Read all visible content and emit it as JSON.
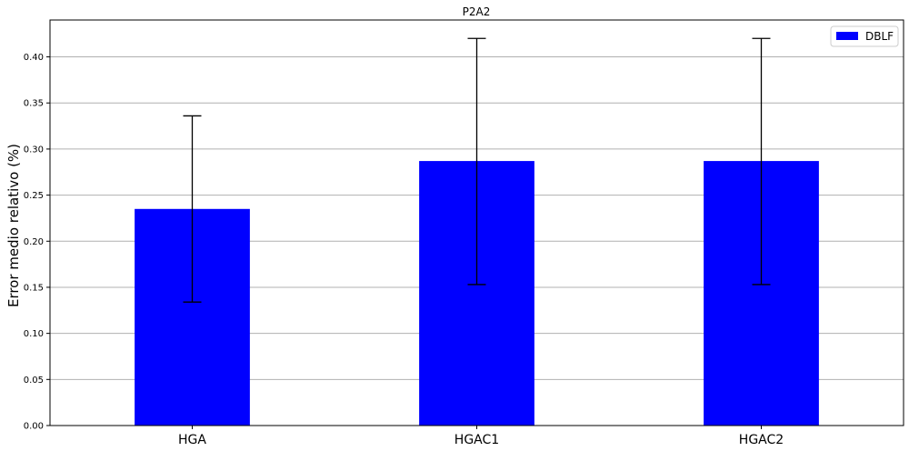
{
  "chart_data": {
    "type": "bar",
    "title": "P2A2",
    "xlabel": "",
    "ylabel": "Error medio relativo (%)",
    "categories": [
      "HGA",
      "HGAC1",
      "HGAC2"
    ],
    "series": [
      {
        "name": "DBLF",
        "values": [
          0.235,
          0.287,
          0.287
        ],
        "error_low": [
          0.134,
          0.153,
          0.153
        ],
        "error_high": [
          0.336,
          0.42,
          0.42
        ],
        "color": "#0000ff"
      }
    ],
    "ylim": [
      0,
      0.44
    ],
    "yticks": [
      "0.00",
      "0.05",
      "0.10",
      "0.15",
      "0.20",
      "0.25",
      "0.30",
      "0.35",
      "0.40"
    ],
    "grid": "horizontal",
    "legend_position": "top-right"
  }
}
